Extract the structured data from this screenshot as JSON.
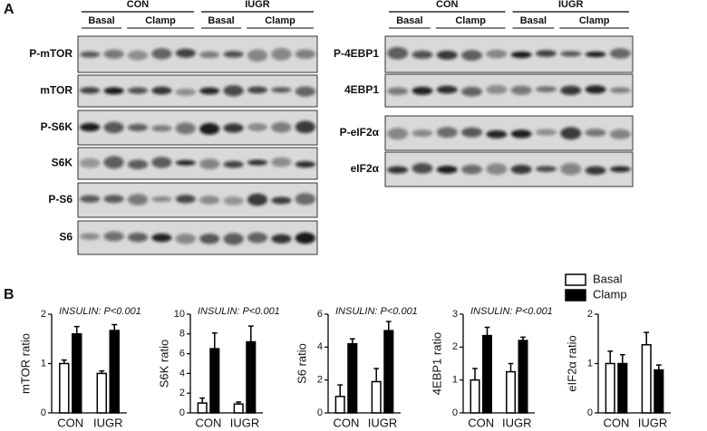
{
  "panels": {
    "a": "A",
    "b": "B"
  },
  "blots": {
    "left": {
      "groups": [
        {
          "label": "CON",
          "subgroups": [
            "Basal",
            "Clamp"
          ]
        },
        {
          "label": "IUGR",
          "subgroups": [
            "Basal",
            "Clamp"
          ]
        }
      ],
      "rows": [
        "P-mTOR",
        "mTOR",
        "P-S6K",
        "S6K",
        "P-S6",
        "S6"
      ]
    },
    "right": {
      "groups": [
        {
          "label": "CON",
          "subgroups": [
            "Basal",
            "Clamp"
          ]
        },
        {
          "label": "IUGR",
          "subgroups": [
            "Basal",
            "Clamp"
          ]
        }
      ],
      "rows": [
        "P-4EBP1",
        "4EBP1",
        "P-eIF2α",
        "eIF2α"
      ]
    }
  },
  "chart_data": [
    {
      "type": "bar",
      "annotation": "INSULIN: P<0.001",
      "ylabel": "mTOR ratio",
      "categories": [
        "CON",
        "IUGR"
      ],
      "series": [
        {
          "name": "Basal",
          "color": "#ffffff",
          "values": [
            1.0,
            0.8
          ],
          "errors": [
            0.07,
            0.05
          ]
        },
        {
          "name": "Clamp",
          "color": "#000000",
          "values": [
            1.6,
            1.67
          ],
          "errors": [
            0.15,
            0.12
          ]
        }
      ],
      "ylim": [
        0,
        2
      ],
      "yticks": [
        0,
        1,
        2
      ]
    },
    {
      "type": "bar",
      "annotation": "INSULIN: P<0.001",
      "ylabel": "S6K ratio",
      "categories": [
        "CON",
        "IUGR"
      ],
      "series": [
        {
          "name": "Basal",
          "color": "#ffffff",
          "values": [
            1.0,
            0.9
          ],
          "errors": [
            0.5,
            0.2
          ]
        },
        {
          "name": "Clamp",
          "color": "#000000",
          "values": [
            6.5,
            7.2
          ],
          "errors": [
            1.6,
            1.6
          ]
        }
      ],
      "ylim": [
        0,
        10
      ],
      "yticks": [
        0,
        2,
        4,
        6,
        8,
        10
      ]
    },
    {
      "type": "bar",
      "annotation": "INSULIN: P<0.001",
      "ylabel": "S6 ratio",
      "categories": [
        "CON",
        "IUGR"
      ],
      "series": [
        {
          "name": "Basal",
          "color": "#ffffff",
          "values": [
            1.0,
            1.9
          ],
          "errors": [
            0.7,
            0.8
          ]
        },
        {
          "name": "Clamp",
          "color": "#000000",
          "values": [
            4.2,
            5.0
          ],
          "errors": [
            0.3,
            0.55
          ]
        }
      ],
      "ylim": [
        0,
        6
      ],
      "yticks": [
        0,
        2,
        4,
        6
      ]
    },
    {
      "type": "bar",
      "annotation": "INSULIN: P<0.001",
      "ylabel": "4EBP1 ratio",
      "categories": [
        "CON",
        "IUGR"
      ],
      "series": [
        {
          "name": "Basal",
          "color": "#ffffff",
          "values": [
            1.0,
            1.25
          ],
          "errors": [
            0.35,
            0.25
          ]
        },
        {
          "name": "Clamp",
          "color": "#000000",
          "values": [
            2.35,
            2.2
          ],
          "errors": [
            0.25,
            0.1
          ]
        }
      ],
      "ylim": [
        0,
        3
      ],
      "yticks": [
        0,
        1,
        2,
        3
      ]
    },
    {
      "type": "bar",
      "ylabel": "eIF2α ratio",
      "categories": [
        "CON",
        "IUGR"
      ],
      "series": [
        {
          "name": "Basal",
          "color": "#ffffff",
          "values": [
            1.0,
            1.38
          ],
          "errors": [
            0.25,
            0.25
          ]
        },
        {
          "name": "Clamp",
          "color": "#000000",
          "values": [
            1.0,
            0.87
          ],
          "errors": [
            0.18,
            0.1
          ]
        }
      ],
      "ylim": [
        0,
        2
      ],
      "yticks": [
        0,
        1,
        2
      ]
    }
  ]
}
